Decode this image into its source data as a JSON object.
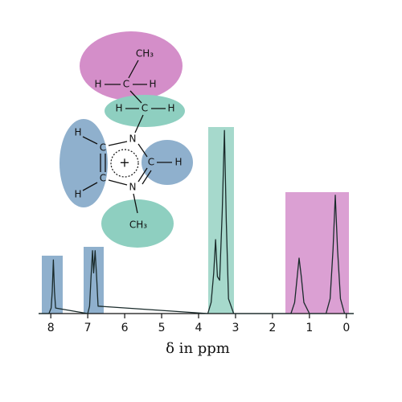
{
  "chart_data": {
    "type": "line",
    "xlabel": "δ in ppm",
    "xlim": [
      8.33,
      -0.2
    ],
    "ylim": [
      0,
      1
    ],
    "xticks": [
      8,
      7,
      6,
      5,
      4,
      3,
      2,
      1,
      0
    ],
    "series": [
      {
        "color": "#1a2b2b",
        "x": [
          8.33,
          8.05,
          7.99,
          7.96,
          7.93,
          7.9,
          7.87,
          7.0,
          6.95,
          6.91,
          6.87,
          6.84,
          6.8,
          6.76,
          6.72,
          3.75,
          3.66,
          3.59,
          3.54,
          3.49,
          3.43,
          3.36,
          3.3,
          3.25,
          3.19,
          3.05,
          1.5,
          1.4,
          1.33,
          1.28,
          1.22,
          1.15,
          1.0,
          0.55,
          0.44,
          0.36,
          0.3,
          0.24,
          0.16,
          0.05,
          -0.2
        ],
        "values": [
          0,
          0,
          0.03,
          0.12,
          0.29,
          0.12,
          0.03,
          0,
          0.04,
          0.2,
          0.34,
          0.22,
          0.34,
          0.2,
          0.04,
          0,
          0.06,
          0.22,
          0.4,
          0.2,
          0.18,
          0.55,
          0.99,
          0.5,
          0.08,
          0,
          0,
          0.06,
          0.2,
          0.3,
          0.2,
          0.06,
          0,
          0,
          0.08,
          0.35,
          0.64,
          0.35,
          0.08,
          0,
          0
        ]
      }
    ]
  },
  "molecule": {
    "ethyl_ch3": "CH₃",
    "h1": "H",
    "c1": "C",
    "h2": "H",
    "h3": "H",
    "c2": "C",
    "h4": "H",
    "n1": "N",
    "c4": "C",
    "c5": "C",
    "h5": "H",
    "h6": "H",
    "charge": "+",
    "c2ring": "C",
    "h7": "H",
    "n3": "N",
    "methyl_ch3": "CH₃"
  }
}
